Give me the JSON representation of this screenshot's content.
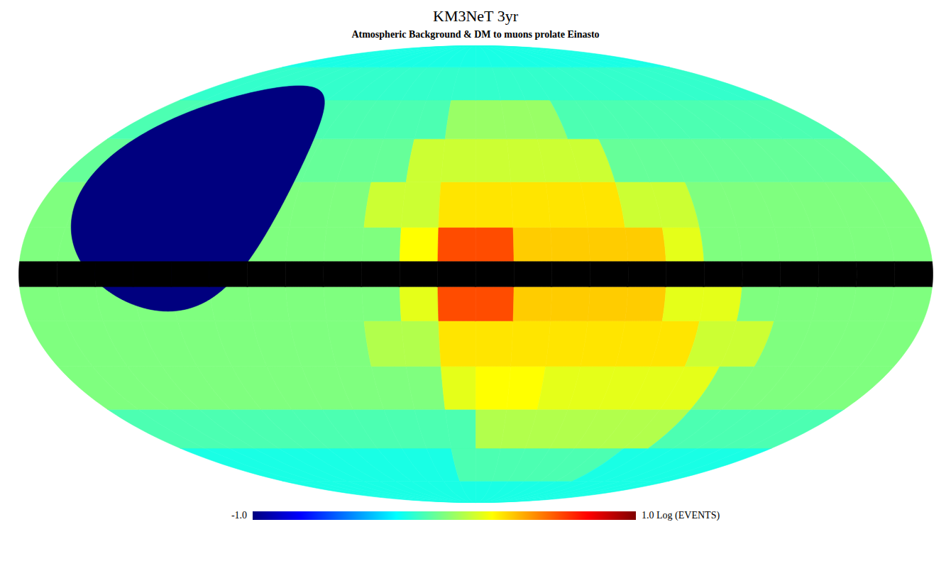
{
  "chart_data": {
    "type": "heatmap",
    "title": "KM3NeT 3yr",
    "subtitle": "Atmospheric Background & DM to muons prolate Einasto",
    "lon_edges": [
      180,
      165,
      150,
      135,
      120,
      105,
      90,
      75,
      60,
      45,
      30,
      15,
      0,
      -15,
      -30,
      -45,
      -60,
      -75,
      -90,
      -105,
      -120,
      -135,
      -150,
      -165,
      -180
    ],
    "lat_edges": [
      -90,
      -75,
      -60,
      -45,
      -30,
      -15,
      -4,
      4,
      15,
      30,
      45,
      60,
      75,
      90
    ],
    "values": [
      [
        -0.2,
        -0.2,
        -0.2,
        -0.2,
        -0.2,
        -0.2,
        -0.2,
        -0.2,
        -0.2,
        -0.2,
        -0.2,
        -0.2,
        -0.2,
        -0.2,
        -0.2,
        -0.2,
        -0.2,
        -0.2,
        -0.2,
        -0.2,
        -0.2,
        -0.2,
        -0.2,
        -0.2
      ],
      [
        -0.2,
        -0.2,
        -0.2,
        -0.2,
        -0.2,
        -0.2,
        -0.2,
        -0.2,
        -0.2,
        -0.2,
        -0.2,
        -0.1,
        -0.1,
        -0.1,
        -0.1,
        -0.1,
        -0.1,
        -0.1,
        -0.2,
        -0.2,
        -0.2,
        -0.2,
        -0.2,
        -0.2
      ],
      [
        -0.1,
        -0.1,
        -0.1,
        -0.1,
        -0.1,
        -0.1,
        -0.1,
        -0.1,
        -0.1,
        -0.1,
        -0.1,
        -0.1,
        0.1,
        0.1,
        0.1,
        0.1,
        0.1,
        0.1,
        0.1,
        -0.1,
        -0.1,
        -0.1,
        -0.1,
        -0.1
      ],
      [
        0.0,
        0.0,
        0.0,
        0.0,
        0.0,
        0.0,
        0.0,
        0.0,
        0.0,
        0.0,
        0.0,
        0.2,
        0.25,
        0.25,
        0.2,
        0.2,
        0.2,
        0.2,
        0.2,
        0.0,
        0.0,
        0.0,
        0.0,
        0.0
      ],
      [
        0.0,
        0.0,
        0.0,
        0.0,
        0.0,
        0.0,
        0.0,
        0.0,
        0.0,
        0.1,
        0.1,
        0.3,
        0.3,
        0.3,
        0.3,
        0.3,
        0.3,
        0.3,
        0.15,
        0.15,
        0.0,
        0.0,
        0.0,
        0.0
      ],
      [
        0.0,
        0.0,
        0.0,
        0.0,
        0.0,
        0.0,
        0.0,
        0.0,
        0.0,
        0.0,
        0.2,
        0.6,
        0.6,
        0.35,
        0.35,
        0.35,
        0.35,
        0.2,
        0.2,
        0.0,
        0.0,
        0.0,
        0.0,
        0.0
      ],
      [
        null,
        null,
        null,
        null,
        null,
        null,
        null,
        null,
        null,
        null,
        null,
        null,
        null,
        null,
        null,
        null,
        null,
        null,
        null,
        null,
        null,
        null,
        null,
        null
      ],
      [
        0.0,
        0.0,
        0.0,
        0.0,
        0.0,
        0.0,
        0.0,
        0.0,
        0.0,
        0.0,
        0.25,
        0.6,
        0.6,
        0.35,
        0.35,
        0.35,
        0.35,
        0.2,
        0.0,
        0.0,
        0.0,
        0.0,
        0.0,
        0.0
      ],
      [
        0.0,
        0.0,
        0.0,
        0.0,
        0.0,
        0.0,
        0.0,
        0.0,
        0.0,
        0.15,
        0.15,
        0.3,
        0.3,
        0.3,
        0.3,
        0.3,
        0.15,
        0.15,
        0.0,
        0.0,
        0.0,
        0.0,
        0.0,
        0.0
      ],
      [
        -0.05,
        -0.05,
        -0.05,
        -0.05,
        -0.05,
        -0.05,
        -0.05,
        -0.05,
        -0.05,
        -0.05,
        0.15,
        0.15,
        0.15,
        0.15,
        0.15,
        0.15,
        -0.05,
        -0.05,
        -0.05,
        -0.05,
        -0.05,
        -0.05,
        -0.05,
        -0.05
      ],
      [
        -0.1,
        -0.1,
        -0.1,
        -0.1,
        -0.1,
        -0.1,
        -0.1,
        -0.1,
        -0.1,
        -0.1,
        -0.1,
        0.05,
        0.05,
        0.05,
        0.05,
        -0.1,
        -0.1,
        -0.1,
        -0.1,
        -0.1,
        -0.1,
        -0.1,
        -0.1,
        -0.1
      ],
      [
        -0.15,
        -0.15,
        -0.15,
        -0.15,
        -0.15,
        -0.15,
        -0.15,
        -0.15,
        -0.15,
        -0.15,
        -0.15,
        -0.15,
        -0.15,
        -0.15,
        -0.15,
        -0.15,
        -0.15,
        -0.15,
        -0.15,
        -0.15,
        -0.15,
        -0.15,
        -0.15,
        -0.15
      ],
      [
        -0.2,
        -0.2,
        -0.2,
        -0.2,
        -0.2,
        -0.2,
        -0.2,
        -0.2,
        -0.2,
        -0.2,
        -0.2,
        -0.2,
        -0.2,
        -0.2,
        -0.2,
        -0.2,
        -0.2,
        -0.2,
        -0.2,
        -0.2,
        -0.2,
        -0.2,
        -0.2,
        -0.2
      ]
    ],
    "region": {
      "center": [
        122.9,
        27.1
      ],
      "radius": 39,
      "value": -1
    },
    "colorbar": {
      "range": [
        -1,
        1
      ],
      "ticks": [
        {
          "value": -1,
          "label": "-1.0"
        },
        {
          "value": 1,
          "label": "1.0"
        }
      ],
      "label": "Log (EVENTS)"
    }
  }
}
